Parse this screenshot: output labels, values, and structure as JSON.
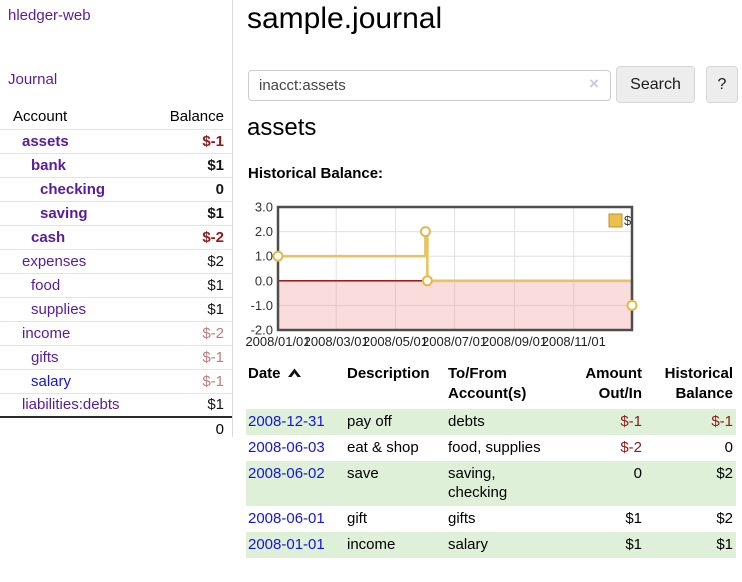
{
  "colors": {
    "link_purple": "#571c9d",
    "link_blue": "#1414dd",
    "negative_strong": "#8e1a1a",
    "negative_soft": "#c17c7c",
    "row_green": "#dff0d8",
    "chart_line_gold": "#e8c35f",
    "chart_negative_region": "#fbdcdc",
    "chart_zero_line": "#8b0000"
  },
  "sidebar": {
    "app_title": "hledger-web",
    "nav": {
      "journal_label": "Journal"
    },
    "accounts_table": {
      "headers": {
        "account": "Account",
        "balance": "Balance"
      },
      "rows": [
        {
          "name": "assets",
          "indent": 1,
          "bold": true,
          "balance": "$-1",
          "negative": true,
          "link_variant": "purple"
        },
        {
          "name": "bank",
          "indent": 2,
          "bold": true,
          "balance": "$1",
          "negative": false,
          "link_variant": "purple"
        },
        {
          "name": "checking",
          "indent": 3,
          "bold": true,
          "balance": "0",
          "negative": false,
          "link_variant": "purple"
        },
        {
          "name": "saving",
          "indent": 3,
          "bold": true,
          "balance": "$1",
          "negative": false,
          "link_variant": "purple"
        },
        {
          "name": "cash",
          "indent": 2,
          "bold": true,
          "balance": "$-2",
          "negative": true,
          "link_variant": "purple"
        },
        {
          "name": "expenses",
          "indent": 1,
          "bold": false,
          "balance": "$2",
          "negative": false,
          "link_variant": "purple"
        },
        {
          "name": "food",
          "indent": 2,
          "bold": false,
          "balance": "$1",
          "negative": false,
          "link_variant": "purple"
        },
        {
          "name": "supplies",
          "indent": 2,
          "bold": false,
          "balance": "$1",
          "negative": false,
          "link_variant": "purple"
        },
        {
          "name": "income",
          "indent": 1,
          "bold": false,
          "balance": "$-2",
          "negative": true,
          "link_variant": "purple"
        },
        {
          "name": "gifts",
          "indent": 2,
          "bold": false,
          "balance": "$-1",
          "negative": true,
          "link_variant": "purple"
        },
        {
          "name": "salary",
          "indent": 2,
          "bold": false,
          "balance": "$-1",
          "negative": true,
          "link_variant": "blue"
        },
        {
          "name": "liabilities:debts",
          "indent": 1,
          "bold": false,
          "balance": "$1",
          "negative": false,
          "link_variant": "purple"
        }
      ],
      "total": "0"
    }
  },
  "header": {
    "title": "sample.journal"
  },
  "search": {
    "query": "inacct:assets",
    "clear_icon": "×",
    "button_label": "Search",
    "help_label": "?"
  },
  "account_page": {
    "heading": "assets",
    "chart_label": "Historical Balance:"
  },
  "chart_data": {
    "type": "line",
    "step": true,
    "title": "Historical Balance",
    "legend_label": "$",
    "legend_position": "top-right",
    "grid": true,
    "ylim": [
      -2,
      3
    ],
    "x_start": "2008/01/01",
    "x_end": "2008/12/31",
    "y_ticks": [
      "3.0",
      "2.0",
      "1.0",
      "0.0",
      "-1.0",
      "-2.0"
    ],
    "x_ticks": [
      "2008/01/01",
      "2008/03/01",
      "2008/05/01",
      "2008/07/01",
      "2008/09/01",
      "2008/11/01"
    ],
    "series": [
      {
        "name": "$",
        "points": [
          [
            "2008/01/01",
            1
          ],
          [
            "2008/06/01",
            2
          ],
          [
            "2008/06/03",
            0
          ],
          [
            "2008/12/31",
            -1
          ]
        ]
      }
    ]
  },
  "register": {
    "headers": {
      "date": "Date",
      "description": "Description",
      "account": "To/From Account(s)",
      "amount": "Amount Out/In",
      "balance": "Historical Balance"
    },
    "rows": [
      {
        "date": "2008-12-31",
        "description": "pay off",
        "accounts": "debts",
        "amount": "$-1",
        "amount_negative": true,
        "balance": "$-1",
        "balance_negative": true,
        "highlight": true
      },
      {
        "date": "2008-06-03",
        "description": "eat & shop",
        "accounts": "food, supplies",
        "amount": "$-2",
        "amount_negative": true,
        "balance": "0",
        "balance_negative": false,
        "highlight": false
      },
      {
        "date": "2008-06-02",
        "description": "save",
        "accounts": "saving, checking",
        "amount": "0",
        "amount_negative": false,
        "balance": "$2",
        "balance_negative": false,
        "highlight": true
      },
      {
        "date": "2008-06-01",
        "description": "gift",
        "accounts": "gifts",
        "amount": "$1",
        "amount_negative": false,
        "balance": "$2",
        "balance_negative": false,
        "highlight": false
      },
      {
        "date": "2008-01-01",
        "description": "income",
        "accounts": "salary",
        "amount": "$1",
        "amount_negative": false,
        "balance": "$1",
        "balance_negative": false,
        "highlight": true
      }
    ]
  }
}
